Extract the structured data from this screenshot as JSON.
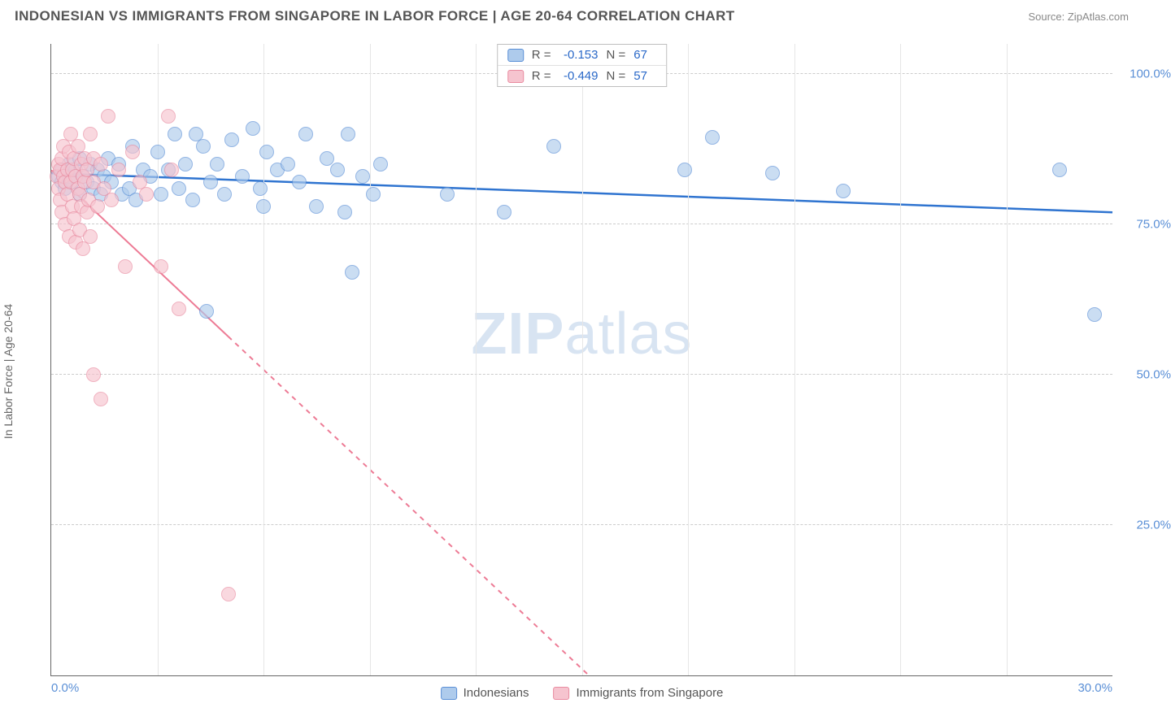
{
  "header": {
    "title": "INDONESIAN VS IMMIGRANTS FROM SINGAPORE IN LABOR FORCE | AGE 20-64 CORRELATION CHART",
    "source_prefix": "Source: ",
    "source": "ZipAtlas.com"
  },
  "chart": {
    "type": "scatter",
    "ylabel": "In Labor Force | Age 20-64",
    "watermark_bold": "ZIP",
    "watermark_rest": "atlas",
    "background_color": "#ffffff",
    "grid_color_h": "#cccccc",
    "grid_color_v": "#e6e6e6",
    "axis_color": "#666666",
    "tick_font_color": "#5a8fd6",
    "label_font_color": "#666666",
    "ylabel_fontsize": 14,
    "tick_fontsize": 15,
    "xlim": [
      0,
      30
    ],
    "ylim": [
      0,
      105
    ],
    "yticks": [
      {
        "v": 25,
        "label": "25.0%"
      },
      {
        "v": 50,
        "label": "50.0%"
      },
      {
        "v": 75,
        "label": "75.0%"
      },
      {
        "v": 100,
        "label": "100.0%"
      }
    ],
    "xticks": [
      {
        "v": 0,
        "label": "0.0%"
      },
      {
        "v": 30,
        "label": "30.0%"
      }
    ],
    "xgridlines": [
      3,
      6,
      9,
      12,
      15,
      18,
      21,
      24,
      27
    ],
    "marker_radius": 9,
    "marker_opacity": 0.65,
    "series": [
      {
        "name": "Indonesians",
        "fill": "#aecbec",
        "stroke": "#5a8fd6",
        "trend_color": "#2f74d0",
        "trend_width": 2.5,
        "trend_dash": "",
        "R": "-0.153",
        "N": "67",
        "trend": {
          "x1": 0,
          "y1": 83.5,
          "x2": 30,
          "y2": 77
        },
        "points": [
          [
            0.2,
            83
          ],
          [
            0.3,
            82
          ],
          [
            0.3,
            84
          ],
          [
            0.4,
            81
          ],
          [
            0.5,
            83
          ],
          [
            0.5,
            85
          ],
          [
            0.6,
            82
          ],
          [
            0.7,
            84
          ],
          [
            0.8,
            80
          ],
          [
            0.8,
            86
          ],
          [
            0.9,
            83
          ],
          [
            1.0,
            82
          ],
          [
            1.1,
            85
          ],
          [
            1.2,
            81
          ],
          [
            1.3,
            84
          ],
          [
            1.4,
            80
          ],
          [
            1.5,
            83
          ],
          [
            1.6,
            86
          ],
          [
            1.7,
            82
          ],
          [
            1.9,
            85
          ],
          [
            2.0,
            80
          ],
          [
            2.2,
            81
          ],
          [
            2.3,
            88
          ],
          [
            2.4,
            79
          ],
          [
            2.6,
            84
          ],
          [
            2.8,
            83
          ],
          [
            3.0,
            87
          ],
          [
            3.1,
            80
          ],
          [
            3.3,
            84
          ],
          [
            3.5,
            90
          ],
          [
            3.6,
            81
          ],
          [
            3.8,
            85
          ],
          [
            4.0,
            79
          ],
          [
            4.1,
            90
          ],
          [
            4.3,
            88
          ],
          [
            4.5,
            82
          ],
          [
            4.7,
            85
          ],
          [
            4.9,
            80
          ],
          [
            5.1,
            89
          ],
          [
            5.4,
            83
          ],
          [
            5.7,
            91
          ],
          [
            5.9,
            81
          ],
          [
            6.1,
            87
          ],
          [
            6.4,
            84
          ],
          [
            6.7,
            85
          ],
          [
            7.0,
            82
          ],
          [
            7.2,
            90
          ],
          [
            7.5,
            78
          ],
          [
            7.8,
            86
          ],
          [
            8.1,
            84
          ],
          [
            8.3,
            77
          ],
          [
            8.4,
            90
          ],
          [
            8.5,
            67
          ],
          [
            8.8,
            83
          ],
          [
            9.1,
            80
          ],
          [
            9.3,
            85
          ],
          [
            4.4,
            60.5
          ],
          [
            11.2,
            80
          ],
          [
            12.8,
            77
          ],
          [
            14.2,
            88
          ],
          [
            17.9,
            84
          ],
          [
            18.7,
            89.5
          ],
          [
            20.4,
            83.5
          ],
          [
            22.4,
            80.5
          ],
          [
            28.5,
            84
          ],
          [
            29.5,
            60
          ],
          [
            6.0,
            78
          ]
        ]
      },
      {
        "name": "Immigrants from Singapore",
        "fill": "#f6c4cf",
        "stroke": "#e98ba0",
        "trend_color": "#ed7b95",
        "trend_width": 2,
        "trend_dash": "6 6",
        "R": "-0.449",
        "N": "57",
        "trend": {
          "x1": 0,
          "y1": 84,
          "x2": 15.2,
          "y2": 0
        },
        "trend_solid_until_x": 5.0,
        "points": [
          [
            0.15,
            83
          ],
          [
            0.2,
            85
          ],
          [
            0.2,
            81
          ],
          [
            0.25,
            84
          ],
          [
            0.25,
            79
          ],
          [
            0.3,
            86
          ],
          [
            0.3,
            77
          ],
          [
            0.35,
            83
          ],
          [
            0.35,
            88
          ],
          [
            0.4,
            82
          ],
          [
            0.4,
            75
          ],
          [
            0.45,
            84
          ],
          [
            0.45,
            80
          ],
          [
            0.5,
            87
          ],
          [
            0.5,
            73
          ],
          [
            0.55,
            82
          ],
          [
            0.55,
            90
          ],
          [
            0.6,
            78
          ],
          [
            0.6,
            84
          ],
          [
            0.65,
            86
          ],
          [
            0.65,
            76
          ],
          [
            0.7,
            83
          ],
          [
            0.7,
            72
          ],
          [
            0.75,
            81
          ],
          [
            0.75,
            88
          ],
          [
            0.8,
            80
          ],
          [
            0.8,
            74
          ],
          [
            0.85,
            85
          ],
          [
            0.85,
            78
          ],
          [
            0.9,
            83
          ],
          [
            0.9,
            71
          ],
          [
            0.95,
            82
          ],
          [
            0.95,
            86
          ],
          [
            1.0,
            77
          ],
          [
            1.0,
            84
          ],
          [
            1.05,
            79
          ],
          [
            1.1,
            90
          ],
          [
            1.1,
            73
          ],
          [
            1.2,
            82
          ],
          [
            1.2,
            86
          ],
          [
            1.3,
            78
          ],
          [
            1.4,
            85
          ],
          [
            1.5,
            81
          ],
          [
            1.6,
            93
          ],
          [
            1.7,
            79
          ],
          [
            1.9,
            84
          ],
          [
            2.1,
            68
          ],
          [
            2.3,
            87
          ],
          [
            2.5,
            82
          ],
          [
            2.7,
            80
          ],
          [
            3.3,
            93
          ],
          [
            3.6,
            61
          ],
          [
            3.4,
            84
          ],
          [
            1.2,
            50
          ],
          [
            1.4,
            46
          ],
          [
            3.1,
            68
          ],
          [
            5.0,
            13.5
          ]
        ]
      }
    ],
    "legend_bottom": [
      {
        "label": "Indonesians",
        "fill": "#aecbec",
        "stroke": "#5a8fd6"
      },
      {
        "label": "Immigrants from Singapore",
        "fill": "#f6c4cf",
        "stroke": "#e98ba0"
      }
    ]
  }
}
